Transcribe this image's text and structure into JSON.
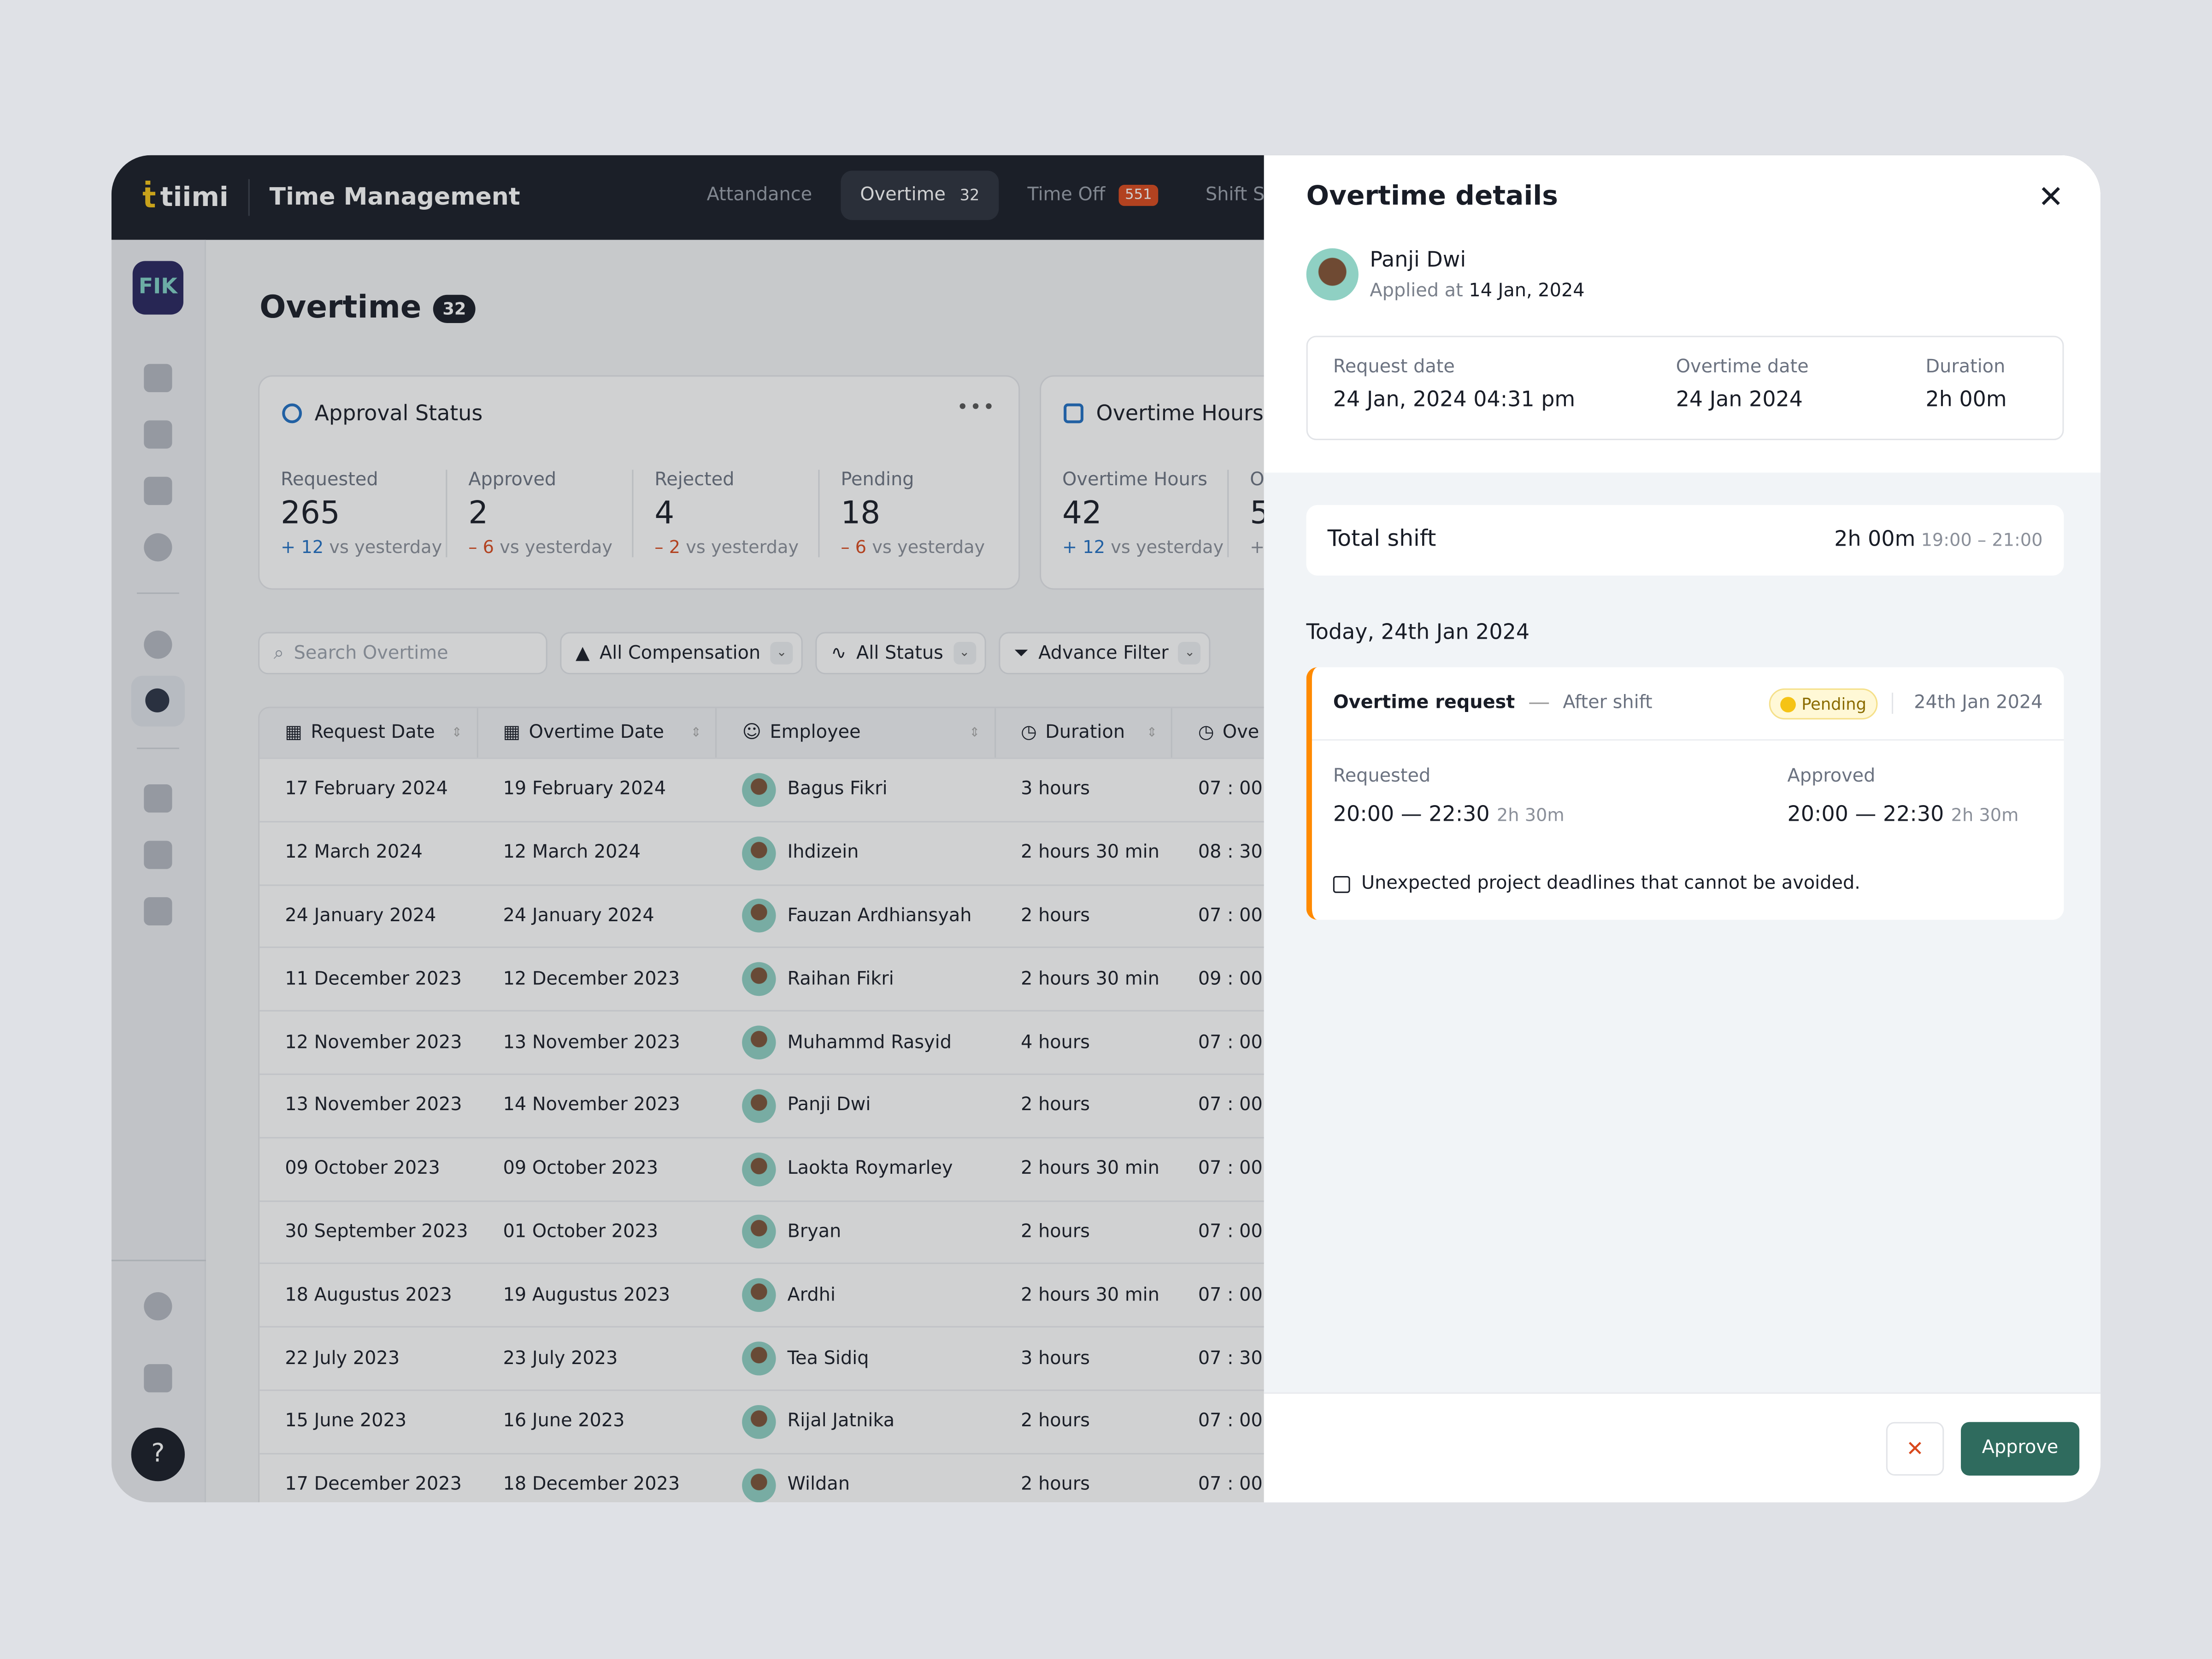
{
  "brand": {
    "logo": "tiimi",
    "app_title": "Time Management",
    "org": "FIK"
  },
  "nav": {
    "tabs": [
      {
        "label": "Attandance"
      },
      {
        "label": "Overtime",
        "count": "32"
      },
      {
        "label": "Time Off",
        "count": "551"
      },
      {
        "label": "Shift Sche"
      }
    ]
  },
  "page": {
    "title": "Overtime",
    "count": "32"
  },
  "approval": {
    "title": "Approval Status",
    "more": "•••",
    "stats": [
      {
        "label": "Requested",
        "value": "265",
        "sign": "+",
        "delta": "12",
        "suffix": "vs yesterday"
      },
      {
        "label": "Approved",
        "value": "2",
        "sign": "–",
        "delta": "6",
        "suffix": "vs yesterday"
      },
      {
        "label": "Rejected",
        "value": "4",
        "sign": "–",
        "delta": "2",
        "suffix": "vs yesterday"
      },
      {
        "label": "Pending",
        "value": "18",
        "sign": "–",
        "delta": "6",
        "suffix": "vs yesterday"
      }
    ]
  },
  "hours": {
    "title": "Overtime Hours S",
    "stats": [
      {
        "label": "Overtime Hours",
        "value": "42",
        "sign": "+",
        "delta": "12",
        "suffix": "vs yesterday"
      },
      {
        "label": "O",
        "value": "5",
        "sign": "+"
      }
    ]
  },
  "filters": {
    "search_placeholder": "Search Overtime",
    "compensation": "All Compensation",
    "status": "All Status",
    "advance": "Advance Filter"
  },
  "table": {
    "headers": [
      "Request Date",
      "Overtime Date",
      "Employee",
      "Duration",
      "Ove"
    ],
    "rows": [
      [
        "17 February 2024",
        "19 February 2024",
        "Bagus Fikri",
        "3 hours",
        "07 : 00"
      ],
      [
        "12 March 2024",
        "12 March 2024",
        "Ihdizein",
        "2 hours 30 min",
        "08 : 30"
      ],
      [
        "24 January 2024",
        "24 January 2024",
        "Fauzan Ardhiansyah",
        "2 hours",
        "07 : 00"
      ],
      [
        "11 December 2023",
        "12 December 2023",
        "Raihan Fikri",
        "2 hours 30 min",
        "09 : 00"
      ],
      [
        "12 November 2023",
        "13 November 2023",
        "Muhammd Rasyid",
        "4 hours",
        "07 : 00"
      ],
      [
        "13 November 2023",
        "14 November 2023",
        "Panji Dwi",
        "2 hours",
        "07 : 00"
      ],
      [
        "09 October 2023",
        "09 October 2023",
        "Laokta Roymarley",
        "2 hours 30 min",
        "07 : 00"
      ],
      [
        "30 September 2023",
        "01 October 2023",
        "Bryan",
        "2 hours",
        "07 : 00"
      ],
      [
        "18 Augustus 2023",
        "19 Augustus 2023",
        "Ardhi",
        "2 hours 30 min",
        "07 : 00"
      ],
      [
        "22 July 2023",
        "23 July 2023",
        "Tea Sidiq",
        "3 hours",
        "07 : 30"
      ],
      [
        "15 June 2023",
        "16 June 2023",
        "Rijal Jatnika",
        "2 hours",
        "07 : 00"
      ],
      [
        "17 December 2023",
        "18 December 2023",
        "Wildan",
        "2 hours",
        "07 : 00"
      ]
    ]
  },
  "drawer": {
    "title": "Overtime details",
    "name": "Panji Dwi",
    "applied_label": "Applied at",
    "applied_date": "14 Jan, 2024",
    "request_date_label": "Request date",
    "request_date": "24 Jan, 2024 04:31 pm",
    "overtime_date_label": "Overtime date",
    "overtime_date": "24 Jan 2024",
    "duration_label": "Duration",
    "duration": "2h 00m",
    "total_label": "Total shift",
    "total": "2h 00m",
    "total_range": "19:00 – 21:00",
    "day": "Today, 24th Jan 2024",
    "req_title": "Overtime request",
    "req_type": "After shift",
    "status": "Pending",
    "req_date": "24th Jan 2024",
    "requested_label": "Requested",
    "requested": "20:00 — 22:30",
    "requested_dur": "2h 30m",
    "approved_label": "Approved",
    "approved": "20:00 — 22:30",
    "approved_dur": "2h 30m",
    "note": "Unexpected project deadlines that cannot be avoided.",
    "reject": "✕",
    "approve": "Approve"
  },
  "colors": {
    "accent": "#2f6b5e",
    "pending": "#ff8a00",
    "up": "#1f6fc3",
    "down": "#d9481c"
  }
}
